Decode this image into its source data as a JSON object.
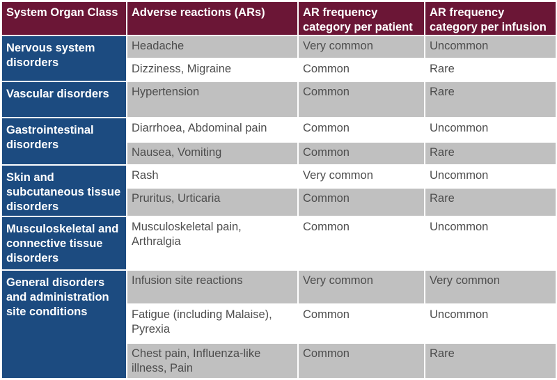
{
  "colors": {
    "header_bg": "#6b1636",
    "soc_bg": "#1c4b80",
    "shaded_row_bg": "#c0c0c0",
    "plain_row_bg": "#ffffff",
    "grid_line": "#ffffff"
  },
  "headers": [
    "System Organ Class",
    "Adverse reactions (ARs)",
    "AR frequency category per patient",
    "AR frequency category per infusion"
  ],
  "system_organ_classes": [
    "Nervous system disorders",
    "Vascular disorders",
    "Gastrointestinal disorders",
    "Skin and subcutaneous tissue disorders",
    "Musculoskeletal and connective tissue disorders",
    "General disorders and administration site conditions"
  ],
  "rows": [
    {
      "reaction": "Headache",
      "per_patient": "Very common",
      "per_infusion": "Uncommon",
      "shaded": true
    },
    {
      "reaction": "Dizziness, Migraine",
      "per_patient": "Common",
      "per_infusion": "Rare",
      "shaded": false
    },
    {
      "reaction": "Hypertension",
      "per_patient": "Common",
      "per_infusion": "Rare",
      "shaded": true
    },
    {
      "reaction": "Diarrhoea, Abdominal pain",
      "per_patient": "Common",
      "per_infusion": "Uncommon",
      "shaded": false
    },
    {
      "reaction": "Nausea, Vomiting",
      "per_patient": "Common",
      "per_infusion": "Rare",
      "shaded": true
    },
    {
      "reaction": "Rash",
      "per_patient": "Very common",
      "per_infusion": "Uncommon",
      "shaded": false
    },
    {
      "reaction": "Pruritus, Urticaria",
      "per_patient": "Common",
      "per_infusion": "Rare",
      "shaded": true
    },
    {
      "reaction": "Musculoskeletal pain, Arthralgia",
      "per_patient": "Common",
      "per_infusion": "Uncommon",
      "shaded": false
    },
    {
      "reaction": "Infusion site reactions",
      "per_patient": "Very common",
      "per_infusion": "Very common",
      "shaded": true
    },
    {
      "reaction": "Fatigue (including Malaise), Pyrexia",
      "per_patient": "Common",
      "per_infusion": "Uncommon",
      "shaded": false
    },
    {
      "reaction": "Chest pain, Influenza-like illness, Pain",
      "per_patient": "Common",
      "per_infusion": "Rare",
      "shaded": true
    }
  ]
}
